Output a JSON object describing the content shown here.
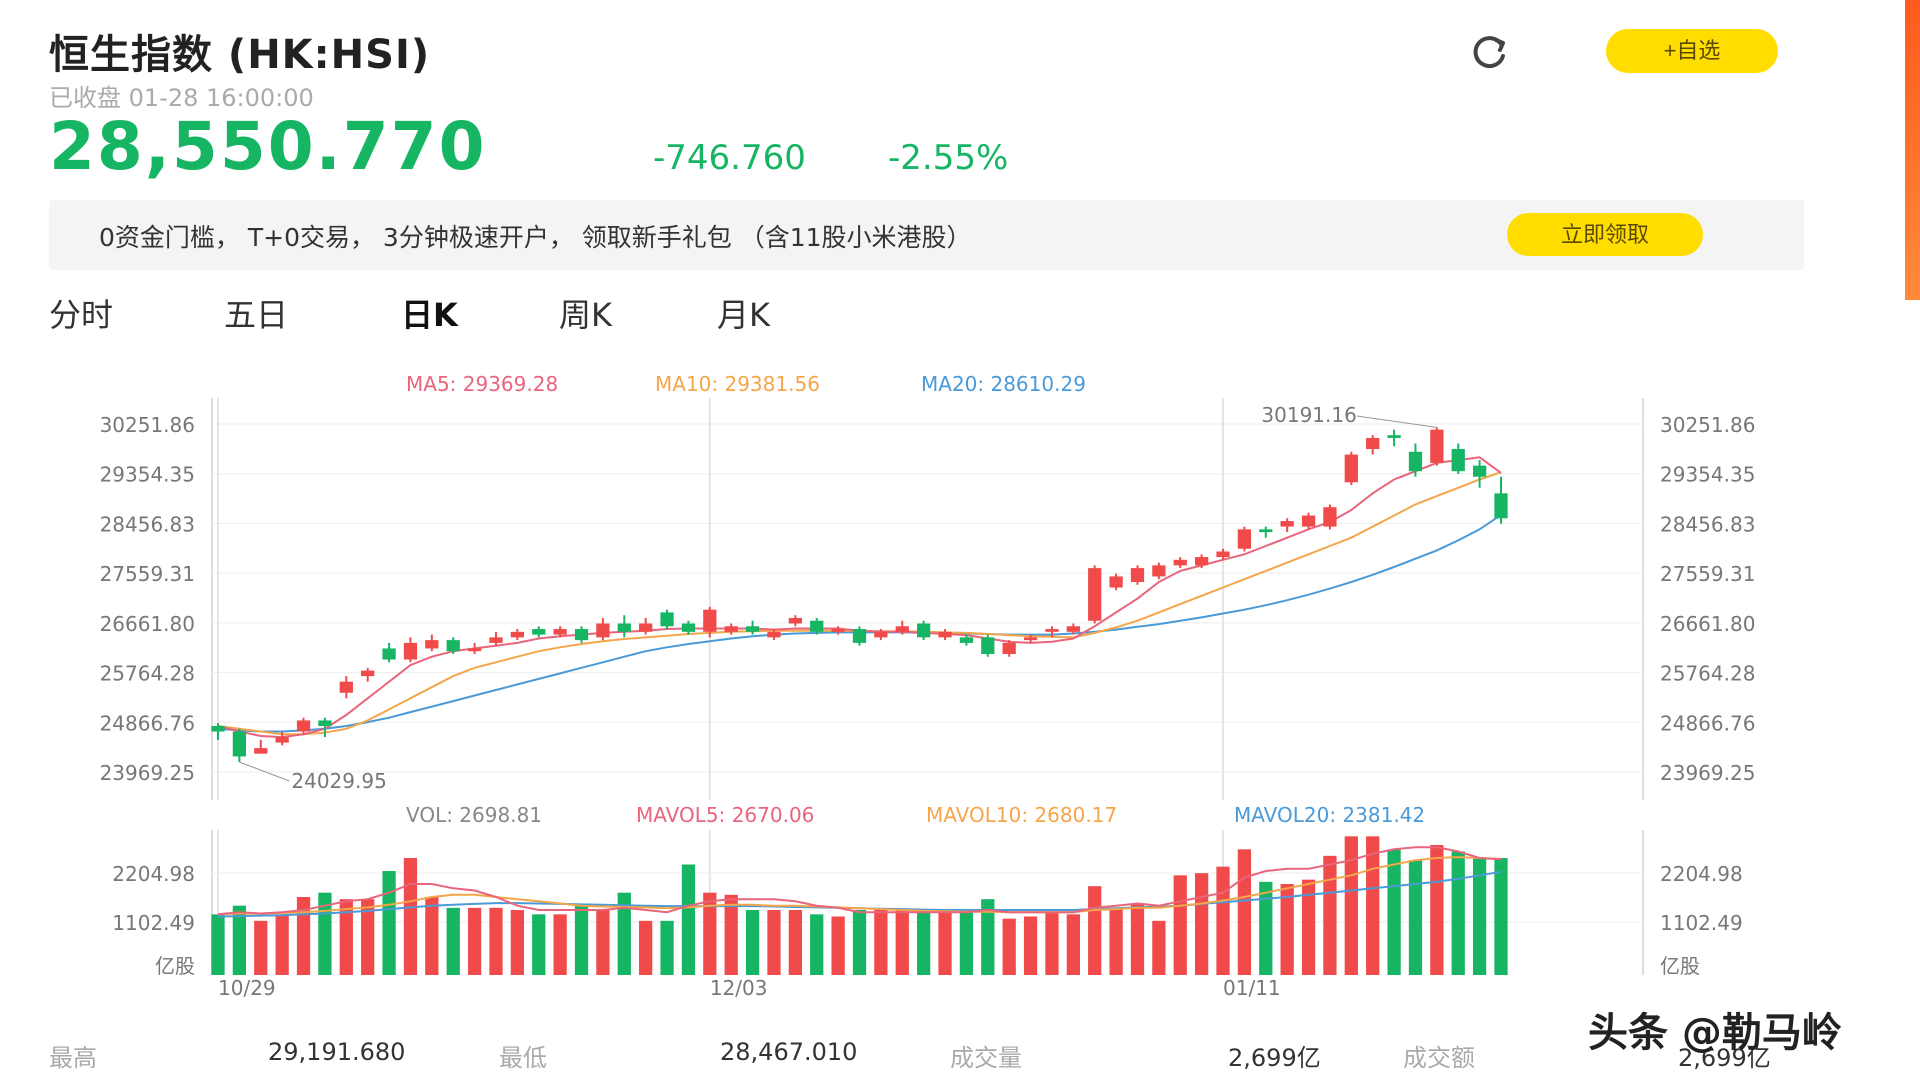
{
  "header": {
    "title": "恒生指数 (HK:HSI)",
    "status": "已收盘 01-28 16:00:00",
    "price": "28,550.770",
    "change": "-746.760",
    "change_pct": "-2.55%",
    "refresh_icon": "refresh-icon",
    "watch_label": "+自选"
  },
  "promo": {
    "text": "0资金门槛， T+0交易， 3分钟极速开户， 领取新手礼包 （含11股小米港股）",
    "claim_label": "立即领取"
  },
  "tabs": [
    {
      "label": "分时",
      "active": false
    },
    {
      "label": "五日",
      "active": false
    },
    {
      "label": "日K",
      "active": true
    },
    {
      "label": "周K",
      "active": false
    },
    {
      "label": "月K",
      "active": false
    }
  ],
  "colors": {
    "up": "#f04a4a",
    "down": "#16b564",
    "ma5": "#e8657c",
    "ma10": "#f5a54a",
    "ma20": "#4a9ad8",
    "accent": "#ffdd00"
  },
  "chart_data": [
    {
      "type": "candlestick",
      "legend": [
        {
          "label": "MA5: 29369.28",
          "color": "#e8657c"
        },
        {
          "label": "MA10: 29381.56",
          "color": "#f5a54a"
        },
        {
          "label": "MA20: 28610.29",
          "color": "#4a9ad8"
        }
      ],
      "y_ticks": [
        "30251.86",
        "29354.35",
        "28456.83",
        "27559.31",
        "26661.80",
        "25764.28",
        "24866.76",
        "23969.25"
      ],
      "ylim": [
        23969.25,
        30251.86
      ],
      "x_tick_labels": [
        "10/29",
        "12/03",
        "01/11"
      ],
      "x_tick_index": [
        0,
        23,
        47
      ],
      "max_label": "30191.16",
      "min_label": "24029.95",
      "candles": [
        [
          24800,
          24700,
          24850,
          24550
        ],
        [
          24700,
          24250,
          24750,
          24150
        ],
        [
          24300,
          24400,
          24550,
          24300
        ],
        [
          24500,
          24600,
          24700,
          24450
        ],
        [
          24700,
          24900,
          24950,
          24650
        ],
        [
          24900,
          24800,
          24950,
          24600
        ],
        [
          25400,
          25600,
          25700,
          25300
        ],
        [
          25700,
          25800,
          25850,
          25600
        ],
        [
          26200,
          26000,
          26300,
          25950
        ],
        [
          26000,
          26300,
          26400,
          25950
        ],
        [
          26200,
          26350,
          26450,
          26150
        ],
        [
          26350,
          26150,
          26400,
          26100
        ],
        [
          26150,
          26200,
          26300,
          26100
        ],
        [
          26300,
          26400,
          26500,
          26250
        ],
        [
          26400,
          26500,
          26550,
          26350
        ],
        [
          26550,
          26450,
          26600,
          26400
        ],
        [
          26450,
          26550,
          26600,
          26400
        ],
        [
          26550,
          26350,
          26600,
          26300
        ],
        [
          26400,
          26650,
          26750,
          26350
        ],
        [
          26650,
          26500,
          26800,
          26400
        ],
        [
          26500,
          26650,
          26750,
          26450
        ],
        [
          26850,
          26600,
          26900,
          26550
        ],
        [
          26650,
          26500,
          26700,
          26450
        ],
        [
          26500,
          26900,
          26950,
          26400
        ],
        [
          26500,
          26600,
          26650,
          26450
        ],
        [
          26600,
          26500,
          26700,
          26450
        ],
        [
          26400,
          26500,
          26550,
          26350
        ],
        [
          26650,
          26750,
          26800,
          26600
        ],
        [
          26700,
          26500,
          26750,
          26450
        ],
        [
          26500,
          26550,
          26600,
          26450
        ],
        [
          26550,
          26300,
          26600,
          26250
        ],
        [
          26400,
          26500,
          26550,
          26350
        ],
        [
          26500,
          26600,
          26700,
          26450
        ],
        [
          26650,
          26400,
          26700,
          26350
        ],
        [
          26400,
          26500,
          26550,
          26350
        ],
        [
          26400,
          26300,
          26450,
          26250
        ],
        [
          26400,
          26100,
          26450,
          26050
        ],
        [
          26100,
          26300,
          26350,
          26050
        ],
        [
          26350,
          26400,
          26450,
          26300
        ],
        [
          26500,
          26550,
          26600,
          26400
        ],
        [
          26500,
          26600,
          26650,
          26450
        ],
        [
          26700,
          27650,
          27700,
          26650
        ],
        [
          27300,
          27500,
          27550,
          27250
        ],
        [
          27400,
          27650,
          27700,
          27350
        ],
        [
          27500,
          27700,
          27750,
          27450
        ],
        [
          27700,
          27800,
          27850,
          27650
        ],
        [
          27700,
          27850,
          27900,
          27650
        ],
        [
          27850,
          27950,
          28000,
          27800
        ],
        [
          28000,
          28350,
          28400,
          27950
        ],
        [
          28350,
          28300,
          28400,
          28200
        ],
        [
          28400,
          28500,
          28550,
          28300
        ],
        [
          28400,
          28600,
          28650,
          28350
        ],
        [
          28400,
          28750,
          28800,
          28350
        ],
        [
          29200,
          29700,
          29750,
          29150
        ],
        [
          29800,
          30000,
          30050,
          29700
        ],
        [
          30050,
          30000,
          30150,
          29850
        ],
        [
          29750,
          29400,
          29900,
          29300
        ],
        [
          29550,
          30150,
          30191,
          29500
        ],
        [
          29800,
          29400,
          29900,
          29350
        ],
        [
          29500,
          29300,
          29600,
          29100
        ],
        [
          29000,
          28550,
          29300,
          28450
        ]
      ],
      "ma5": [
        24800,
        24700,
        24620,
        24600,
        24650,
        24750,
        25000,
        25300,
        25600,
        25900,
        26050,
        26150,
        26200,
        26250,
        26300,
        26380,
        26420,
        26450,
        26480,
        26500,
        26520,
        26550,
        26560,
        26560,
        26560,
        26560,
        26540,
        26560,
        26560,
        26560,
        26520,
        26500,
        26500,
        26480,
        26460,
        26440,
        26380,
        26320,
        26300,
        26320,
        26380,
        26600,
        26850,
        27100,
        27400,
        27600,
        27700,
        27800,
        27900,
        28050,
        28200,
        28350,
        28480,
        28700,
        29000,
        29250,
        29400,
        29550,
        29600,
        29650,
        29369
      ],
      "ma10": [
        24800,
        24750,
        24700,
        24650,
        24650,
        24680,
        24750,
        24900,
        25100,
        25300,
        25500,
        25700,
        25850,
        25950,
        26050,
        26150,
        26220,
        26280,
        26330,
        26370,
        26400,
        26430,
        26460,
        26480,
        26500,
        26510,
        26520,
        26520,
        26520,
        26520,
        26520,
        26510,
        26510,
        26500,
        26490,
        26480,
        26460,
        26440,
        26420,
        26410,
        26400,
        26480,
        26580,
        26700,
        26850,
        27000,
        27150,
        27300,
        27450,
        27600,
        27750,
        27900,
        28050,
        28200,
        28400,
        28600,
        28800,
        28950,
        29100,
        29250,
        29381
      ],
      "ma20": [
        24750,
        24720,
        24700,
        24700,
        24720,
        24750,
        24800,
        24870,
        24950,
        25050,
        25150,
        25250,
        25350,
        25450,
        25550,
        25650,
        25750,
        25850,
        25950,
        26050,
        26150,
        26220,
        26280,
        26330,
        26380,
        26420,
        26450,
        26470,
        26480,
        26490,
        26490,
        26490,
        26490,
        26480,
        26480,
        26470,
        26460,
        26450,
        26450,
        26450,
        26470,
        26500,
        26540,
        26590,
        26640,
        26700,
        26760,
        26830,
        26900,
        26980,
        27070,
        27170,
        27280,
        27400,
        27530,
        27670,
        27820,
        27970,
        28150,
        28350,
        28610
      ]
    },
    {
      "type": "bar",
      "legend": [
        {
          "label": "VOL: 2698.81",
          "color": "#888888"
        },
        {
          "label": "MAVOL5: 2670.06",
          "color": "#e8657c"
        },
        {
          "label": "MAVOL10: 2680.17",
          "color": "#f5a54a"
        },
        {
          "label": "MAVOL20: 2381.42",
          "color": "#4a9ad8"
        }
      ],
      "y_ticks": [
        "2204.98",
        "1102.49",
        "亿股"
      ],
      "ylim": [
        0,
        3300
      ],
      "volumes": [
        1400,
        1600,
        1250,
        1400,
        1800,
        1900,
        1750,
        1750,
        2400,
        2700,
        1800,
        1550,
        1550,
        1550,
        1500,
        1400,
        1400,
        1600,
        1500,
        1900,
        1250,
        1250,
        2550,
        1900,
        1850,
        1500,
        1500,
        1500,
        1400,
        1350,
        1500,
        1500,
        1500,
        1450,
        1450,
        1450,
        1750,
        1300,
        1350,
        1450,
        1400,
        2050,
        1550,
        1650,
        1250,
        2300,
        2350,
        2500,
        2900,
        2150,
        2100,
        2200,
        2750,
        3200,
        3200,
        2900,
        2650,
        3000,
        2850,
        2700,
        2699
      ],
      "mavol5": [
        1400,
        1450,
        1420,
        1450,
        1500,
        1600,
        1700,
        1750,
        1900,
        2100,
        2100,
        2000,
        1950,
        1800,
        1600,
        1500,
        1500,
        1500,
        1500,
        1550,
        1500,
        1450,
        1600,
        1700,
        1750,
        1750,
        1750,
        1700,
        1600,
        1550,
        1450,
        1450,
        1450,
        1450,
        1450,
        1450,
        1500,
        1450,
        1450,
        1450,
        1450,
        1550,
        1600,
        1650,
        1600,
        1700,
        1800,
        1900,
        2250,
        2400,
        2450,
        2450,
        2550,
        2650,
        2800,
        2900,
        2950,
        2950,
        2850,
        2700,
        2670
      ],
      "mavol10": [
        1400,
        1420,
        1420,
        1430,
        1450,
        1480,
        1520,
        1560,
        1620,
        1700,
        1800,
        1850,
        1850,
        1800,
        1750,
        1700,
        1650,
        1600,
        1580,
        1570,
        1560,
        1540,
        1560,
        1600,
        1620,
        1620,
        1600,
        1600,
        1580,
        1560,
        1540,
        1520,
        1500,
        1480,
        1470,
        1460,
        1460,
        1450,
        1450,
        1450,
        1450,
        1500,
        1520,
        1550,
        1550,
        1600,
        1650,
        1720,
        1800,
        1900,
        2000,
        2100,
        2200,
        2300,
        2450,
        2550,
        2650,
        2700,
        2720,
        2700,
        2680
      ],
      "mavol20": [
        1350,
        1360,
        1370,
        1380,
        1400,
        1420,
        1450,
        1480,
        1520,
        1560,
        1600,
        1620,
        1640,
        1660,
        1660,
        1650,
        1640,
        1630,
        1620,
        1610,
        1600,
        1590,
        1590,
        1590,
        1590,
        1590,
        1580,
        1570,
        1560,
        1550,
        1540,
        1530,
        1520,
        1510,
        1500,
        1500,
        1500,
        1500,
        1500,
        1500,
        1500,
        1520,
        1540,
        1560,
        1580,
        1600,
        1640,
        1680,
        1720,
        1760,
        1800,
        1850,
        1900,
        1950,
        2000,
        2050,
        2100,
        2150,
        2220,
        2300,
        2381
      ]
    }
  ],
  "stats": [
    {
      "label": "最高",
      "value": "29,191.680"
    },
    {
      "label": "最低",
      "value": "28,467.010"
    },
    {
      "label": "成交量",
      "value": "2,699亿"
    },
    {
      "label": "成交额",
      "value": "2,699亿"
    }
  ],
  "watermark": "头条 @勒马岭"
}
